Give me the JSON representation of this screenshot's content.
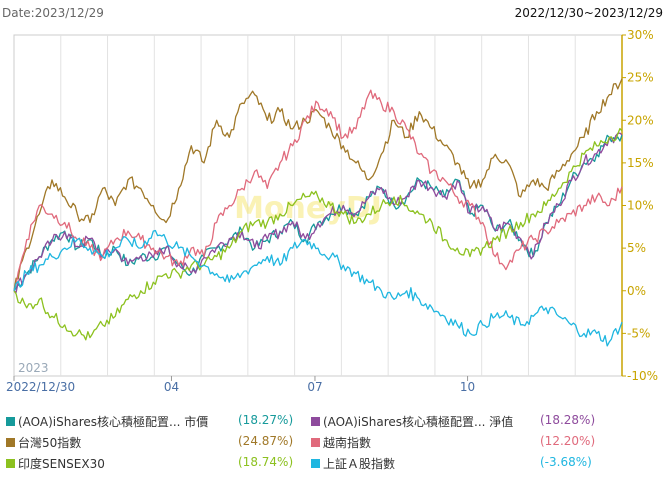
{
  "header": {
    "date_label": "Date:2023/12/29",
    "range_label": "2022/12/30~2023/12/29"
  },
  "chart_data": {
    "type": "line",
    "x_ticks": [
      "2022/12/30",
      "04",
      "07",
      "10"
    ],
    "year_marker": "2023",
    "watermark": "MoneyDJ",
    "y_ticks": [
      "30%",
      "25%",
      "20%",
      "15%",
      "10%",
      "5%",
      "0%",
      "-5%",
      "-10%"
    ],
    "ylim": [
      -10,
      30
    ],
    "y_axis_position": "right",
    "grid": "vertical",
    "legend_position": "bottom",
    "series": [
      {
        "name": "(AOA)iShares核心積極配置... 市價",
        "final": "(18.27%)",
        "color": "#169a9b",
        "values": [
          0,
          2,
          4,
          6,
          7,
          5,
          6,
          4,
          5,
          3,
          4,
          4,
          5,
          3,
          2,
          4,
          5,
          6,
          7,
          5,
          6,
          7,
          8,
          6,
          8,
          9,
          10,
          9,
          11,
          12,
          10,
          11,
          13,
          12,
          11,
          13,
          9,
          10,
          7,
          8,
          6,
          4,
          8,
          10,
          13,
          15,
          16,
          18,
          18.27
        ]
      },
      {
        "name": "(AOA)iShares核心積極配置... 淨值",
        "final": "(18.28%)",
        "color": "#8e4b9d",
        "values": [
          0,
          2,
          4,
          5.8,
          6.9,
          5.2,
          6.1,
          4.1,
          4.9,
          3.1,
          4.1,
          3.9,
          5.1,
          3.1,
          2.1,
          3.9,
          5.1,
          6.1,
          6.9,
          5.1,
          6.1,
          6.9,
          8.1,
          6.1,
          7.9,
          9.1,
          10,
          9.1,
          10.9,
          12.1,
          10.1,
          11.1,
          12.9,
          12.1,
          11.1,
          12.9,
          9.1,
          9.9,
          7.1,
          7.9,
          6.1,
          4.1,
          7.9,
          10.1,
          12.9,
          15.1,
          16.1,
          17.9,
          18.28
        ]
      },
      {
        "name": "台灣50指數",
        "final": "(24.87%)",
        "color": "#a07828",
        "values": [
          0,
          5,
          9,
          13,
          11,
          9,
          8,
          12,
          10,
          13,
          12,
          10,
          8,
          12,
          17,
          15,
          20,
          18,
          22,
          23,
          20,
          21,
          19,
          20,
          21,
          19,
          17,
          15,
          13,
          16,
          20,
          18,
          21,
          19,
          17,
          15,
          12,
          13,
          16,
          15,
          11,
          13,
          12,
          14,
          16,
          18,
          21,
          23,
          24.87
        ]
      },
      {
        "name": "越南指數",
        "final": "(12.20%)",
        "color": "#e06a7c",
        "values": [
          0,
          6,
          10,
          9,
          8,
          6,
          5,
          4,
          6,
          7,
          6,
          5,
          4,
          3,
          5,
          4,
          8,
          10,
          12,
          14,
          12,
          15,
          17,
          20,
          22,
          21,
          18,
          19,
          23,
          22,
          21,
          19,
          16,
          14,
          13,
          11,
          10,
          8,
          4,
          3,
          5,
          6,
          7,
          8,
          9,
          10,
          11,
          10,
          12.2
        ]
      },
      {
        "name": "印度SENSEX30",
        "final": "(18.74%)",
        "color": "#8cc11f",
        "values": [
          0,
          -2,
          -1,
          -3,
          -4,
          -5,
          -5.5,
          -4,
          -3,
          -1,
          0,
          1,
          2,
          2,
          3,
          3,
          4,
          5,
          7,
          8,
          8,
          9,
          10,
          11,
          11,
          10,
          9,
          8,
          9,
          10,
          11,
          10,
          9,
          8,
          6,
          5,
          4,
          5,
          6,
          7,
          8,
          9,
          10,
          12,
          14,
          16,
          17,
          18,
          18.74
        ]
      },
      {
        "name": "上証Ａ股指數",
        "final": "(-3.68%)",
        "color": "#1fb6e0",
        "values": [
          0,
          2,
          3,
          4,
          5,
          6,
          5,
          4,
          5,
          6,
          5,
          7,
          6,
          5,
          4,
          3,
          2,
          1,
          2,
          3,
          4,
          3,
          5,
          6,
          5,
          4,
          3,
          2,
          1,
          0,
          -1,
          0,
          -1,
          -2,
          -3,
          -4,
          -5,
          -4,
          -3,
          -3,
          -4,
          -3,
          -2,
          -3,
          -4,
          -5,
          -5,
          -6,
          -3.68
        ]
      }
    ]
  }
}
